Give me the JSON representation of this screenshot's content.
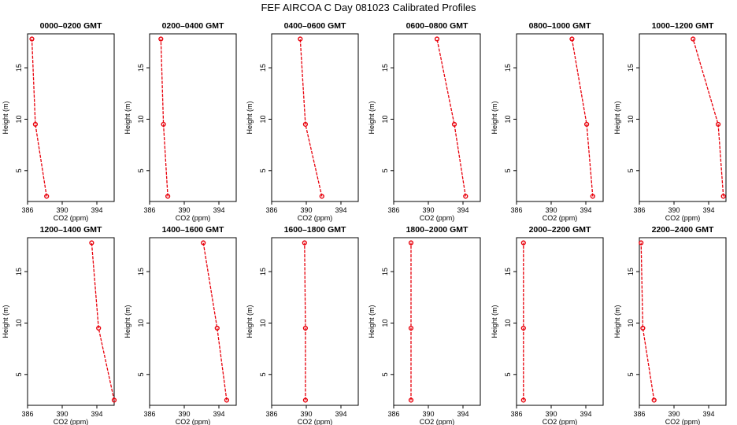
{
  "title": "FEF AIRCOA C  Day 081023  Calibrated Profiles",
  "colors": {
    "series": "#e8000b",
    "axis": "#000000",
    "background": "#ffffff"
  },
  "chart_data": [
    {
      "type": "line",
      "title": "0000–0200 GMT",
      "xlabel": "CO2 (ppm)",
      "ylabel": "Height (m)",
      "x": [
        388.2,
        386.9,
        386.5
      ],
      "y": [
        2.5,
        9.5,
        17.8
      ],
      "xlim": [
        386,
        396
      ],
      "ylim": [
        2,
        18.3
      ],
      "xticks": [
        386,
        390,
        394
      ],
      "yticks": [
        5,
        10,
        15
      ],
      "grid": false
    },
    {
      "type": "line",
      "title": "0200–0400 GMT",
      "xlabel": "CO2 (ppm)",
      "ylabel": "Height (m)",
      "x": [
        388.1,
        387.6,
        387.3
      ],
      "y": [
        2.5,
        9.5,
        17.8
      ],
      "xlim": [
        386,
        396
      ],
      "ylim": [
        2,
        18.3
      ],
      "xticks": [
        386,
        390,
        394
      ],
      "yticks": [
        5,
        10,
        15
      ],
      "grid": false
    },
    {
      "type": "line",
      "title": "0400–0600 GMT",
      "xlabel": "CO2 (ppm)",
      "ylabel": "Height (m)",
      "x": [
        391.8,
        389.9,
        389.3
      ],
      "y": [
        2.5,
        9.5,
        17.8
      ],
      "xlim": [
        386,
        396
      ],
      "ylim": [
        2,
        18.3
      ],
      "xticks": [
        386,
        390,
        394
      ],
      "yticks": [
        5,
        10,
        15
      ],
      "grid": false
    },
    {
      "type": "line",
      "title": "0600–0800 GMT",
      "xlabel": "CO2 (ppm)",
      "ylabel": "Height (m)",
      "x": [
        394.3,
        393.0,
        391.0
      ],
      "y": [
        2.5,
        9.5,
        17.8
      ],
      "xlim": [
        386,
        396
      ],
      "ylim": [
        2,
        18.3
      ],
      "xticks": [
        386,
        390,
        394
      ],
      "yticks": [
        5,
        10,
        15
      ],
      "grid": false
    },
    {
      "type": "line",
      "title": "0800–1000 GMT",
      "xlabel": "CO2 (ppm)",
      "ylabel": "Height (m)",
      "x": [
        394.8,
        394.1,
        392.4
      ],
      "y": [
        2.5,
        9.5,
        17.8
      ],
      "xlim": [
        386,
        396
      ],
      "ylim": [
        2,
        18.3
      ],
      "xticks": [
        386,
        390,
        394
      ],
      "yticks": [
        5,
        10,
        15
      ],
      "grid": false
    },
    {
      "type": "line",
      "title": "1000–1200 GMT",
      "xlabel": "CO2 (ppm)",
      "ylabel": "Height (m)",
      "x": [
        395.7,
        395.1,
        392.2
      ],
      "y": [
        2.5,
        9.5,
        17.8
      ],
      "xlim": [
        386,
        396
      ],
      "ylim": [
        2,
        18.3
      ],
      "xticks": [
        386,
        390,
        394
      ],
      "yticks": [
        5,
        10,
        15
      ],
      "grid": false
    },
    {
      "type": "line",
      "title": "1200–1400 GMT",
      "xlabel": "CO2 (ppm)",
      "ylabel": "Height (m)",
      "x": [
        396.0,
        394.2,
        393.4
      ],
      "y": [
        2.5,
        9.5,
        17.8
      ],
      "xlim": [
        386,
        396
      ],
      "ylim": [
        2,
        18.3
      ],
      "xticks": [
        386,
        390,
        394
      ],
      "yticks": [
        5,
        10,
        15
      ],
      "grid": false
    },
    {
      "type": "line",
      "title": "1400–1600 GMT",
      "xlabel": "CO2 (ppm)",
      "ylabel": "Height (m)",
      "x": [
        394.9,
        393.8,
        392.2
      ],
      "y": [
        2.5,
        9.5,
        17.8
      ],
      "xlim": [
        386,
        396
      ],
      "ylim": [
        2,
        18.3
      ],
      "xticks": [
        386,
        390,
        394
      ],
      "yticks": [
        5,
        10,
        15
      ],
      "grid": false
    },
    {
      "type": "line",
      "title": "1600–1800 GMT",
      "xlabel": "CO2 (ppm)",
      "ylabel": "Height (m)",
      "x": [
        389.9,
        389.9,
        389.8
      ],
      "y": [
        2.5,
        9.5,
        17.8
      ],
      "xlim": [
        386,
        396
      ],
      "ylim": [
        2,
        18.3
      ],
      "xticks": [
        386,
        390,
        394
      ],
      "yticks": [
        5,
        10,
        15
      ],
      "grid": false
    },
    {
      "type": "line",
      "title": "1800–2000 GMT",
      "xlabel": "CO2 (ppm)",
      "ylabel": "Height (m)",
      "x": [
        388.0,
        388.0,
        388.0
      ],
      "y": [
        2.5,
        9.5,
        17.8
      ],
      "xlim": [
        386,
        396
      ],
      "ylim": [
        2,
        18.3
      ],
      "xticks": [
        386,
        390,
        394
      ],
      "yticks": [
        5,
        10,
        15
      ],
      "grid": false
    },
    {
      "type": "line",
      "title": "2000–2200 GMT",
      "xlabel": "CO2 (ppm)",
      "ylabel": "Height (m)",
      "x": [
        386.8,
        386.8,
        386.8
      ],
      "y": [
        2.5,
        9.5,
        17.8
      ],
      "xlim": [
        386,
        396
      ],
      "ylim": [
        2,
        18.3
      ],
      "xticks": [
        386,
        390,
        394
      ],
      "yticks": [
        5,
        10,
        15
      ],
      "grid": false
    },
    {
      "type": "line",
      "title": "2200–2400 GMT",
      "xlabel": "CO2 (ppm)",
      "ylabel": "Height (m)",
      "x": [
        387.7,
        386.4,
        386.2
      ],
      "y": [
        2.5,
        9.5,
        17.8
      ],
      "xlim": [
        386,
        396
      ],
      "ylim": [
        2,
        18.3
      ],
      "xticks": [
        386,
        390,
        394
      ],
      "yticks": [
        5,
        10,
        15
      ],
      "grid": false
    }
  ]
}
